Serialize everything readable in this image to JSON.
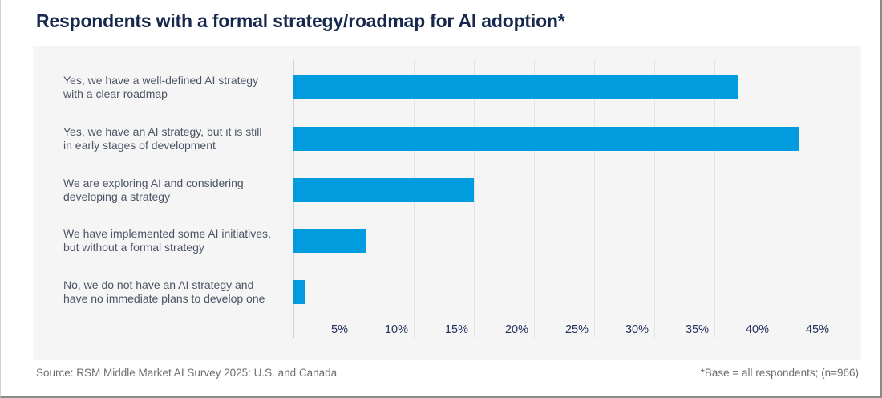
{
  "title": "Respondents with a formal strategy/roadmap for AI adoption*",
  "footer": {
    "source": "Source: RSM Middle Market AI Survey 2025: U.S. and Canada",
    "base_note": "*Base = all respondents; (n=966)"
  },
  "colors": {
    "bar": "#009CDE",
    "title_text": "#16284C",
    "category_text": "#4C5565",
    "tick_text": "#25335B",
    "panel_background": "#F5F5F6",
    "gridline": "#E4E4E4",
    "footer_text": "#6F6F6F"
  },
  "chart_data": {
    "type": "bar",
    "orientation": "horizontal",
    "title": "Respondents with a formal strategy/roadmap for AI adoption*",
    "categories": [
      "Yes, we have a well-defined AI strategy\nwith a clear roadmap",
      "Yes, we have an AI strategy, but it is still\nin early stages of development",
      "We are exploring AI and considering\ndeveloping a strategy",
      "We have implemented some AI initiatives,\nbut without a formal strategy",
      "No, we do not have an AI strategy and\nhave no immediate plans to develop one"
    ],
    "values": [
      37,
      42,
      15,
      6,
      1
    ],
    "unit": "%",
    "xlim": [
      0,
      45
    ],
    "x_tick_step": 5,
    "x_tick_labels": [
      "5%",
      "10%",
      "15%",
      "20%",
      "25%",
      "30%",
      "35%",
      "40%",
      "45%"
    ],
    "grid": "vertical",
    "legend": "none",
    "data_labels": "none"
  }
}
